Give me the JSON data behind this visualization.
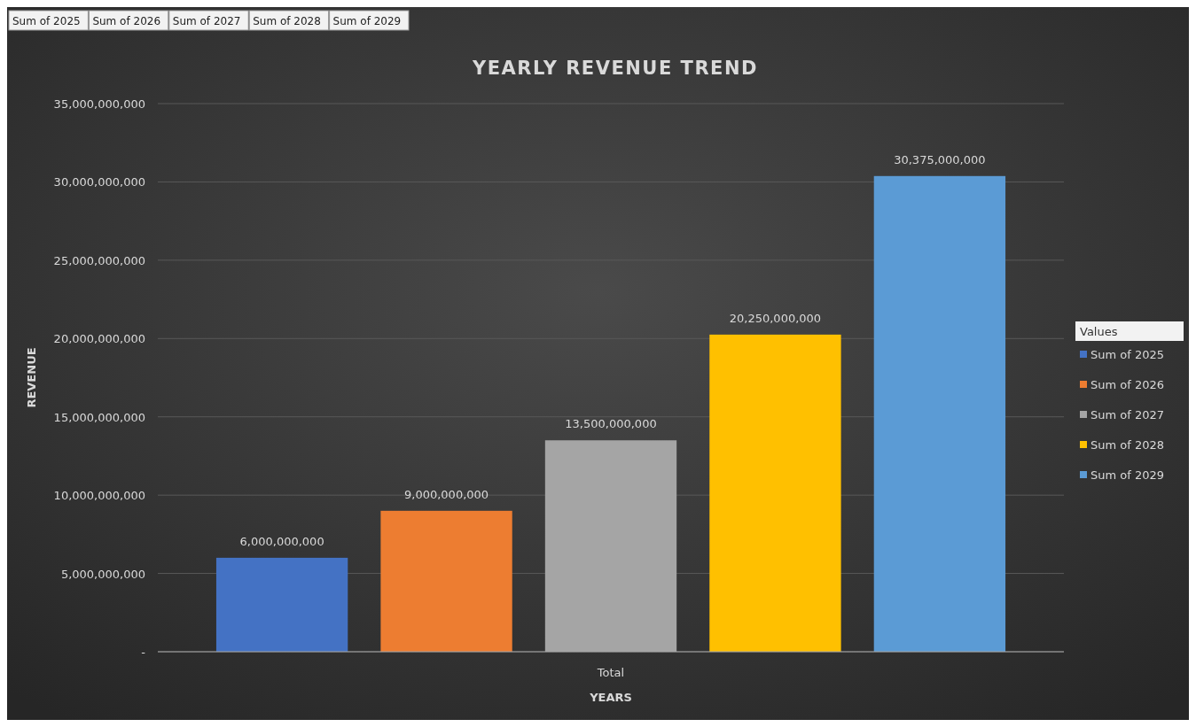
{
  "chart_data": {
    "type": "bar",
    "title": "YEARLY REVENUE TREND",
    "xlabel": "YEARS",
    "ylabel": "REVENUE",
    "legend_title": "Values",
    "annotations": [
      "Sum of 2025",
      "Sum of 2026",
      "Sum of 2027",
      "Sum of 2028",
      "Sum of 2029"
    ],
    "categories": [
      "Total"
    ],
    "series": [
      {
        "name": "Sum of 2025",
        "color": "#4472c4",
        "values": [
          6000000000
        ],
        "value_labels": [
          "6,000,000,000"
        ]
      },
      {
        "name": "Sum of 2026",
        "color": "#ed7d31",
        "values": [
          9000000000
        ],
        "value_labels": [
          "9,000,000,000"
        ]
      },
      {
        "name": "Sum of 2027",
        "color": "#a5a5a5",
        "values": [
          13500000000
        ],
        "value_labels": [
          "13,500,000,000"
        ]
      },
      {
        "name": "Sum of 2028",
        "color": "#ffc000",
        "values": [
          20250000000
        ],
        "value_labels": [
          "20,250,000,000"
        ]
      },
      {
        "name": "Sum of 2029",
        "color": "#5b9bd5",
        "values": [
          30375000000
        ],
        "value_labels": [
          "30,375,000,000"
        ]
      }
    ],
    "ylim": [
      0,
      35000000000
    ],
    "yticks": [
      {
        "value": 0,
        "label": "-"
      },
      {
        "value": 5000000000,
        "label": "5,000,000,000"
      },
      {
        "value": 10000000000,
        "label": "10,000,000,000"
      },
      {
        "value": 15000000000,
        "label": "15,000,000,000"
      },
      {
        "value": 20000000000,
        "label": "20,000,000,000"
      },
      {
        "value": 25000000000,
        "label": "25,000,000,000"
      },
      {
        "value": 30000000000,
        "label": "30,000,000,000"
      },
      {
        "value": 35000000000,
        "label": "35,000,000,000"
      }
    ],
    "grid": "y",
    "legend": "right"
  }
}
